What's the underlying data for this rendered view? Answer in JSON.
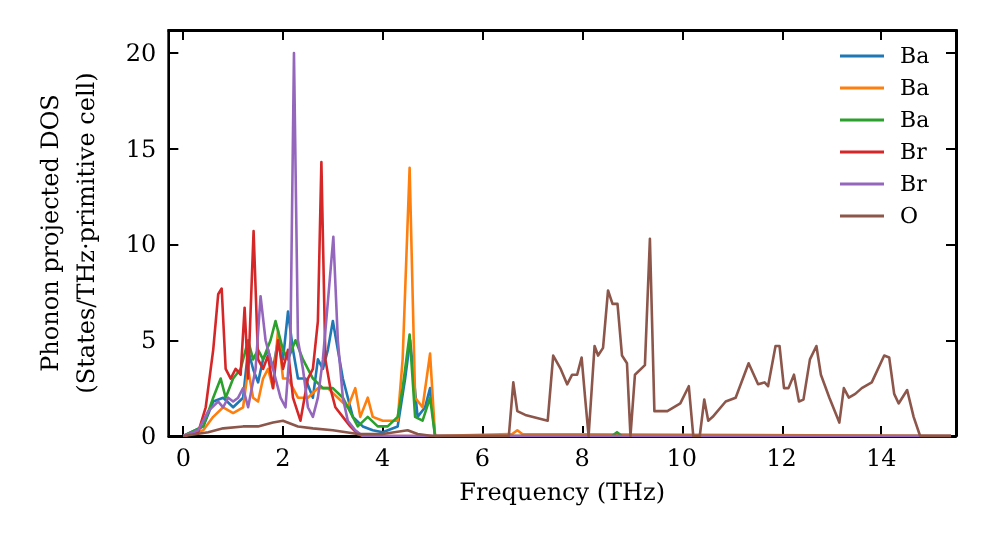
{
  "chart_data": {
    "type": "line",
    "xlabel": "Frequency (THz)",
    "ylabel": "Phonon projected DOS\n(States/THz·primitive cell)",
    "xlim": [
      -0.3,
      15.5
    ],
    "xticks": [
      0,
      2,
      4,
      6,
      8,
      10,
      12,
      14
    ],
    "ylim": [
      0,
      21.2
    ],
    "yticks": [
      0,
      5,
      10,
      15,
      20
    ],
    "grid": false,
    "legend": "top right",
    "marker": "none",
    "line_style": "solid",
    "series": [
      {
        "name": "Ba",
        "color": "#1f77b4",
        "x": [
          0,
          0.4,
          0.6,
          0.8,
          1.0,
          1.2,
          1.3,
          1.4,
          1.5,
          1.6,
          1.7,
          1.8,
          1.9,
          2.0,
          2.1,
          2.2,
          2.3,
          2.45,
          2.6,
          2.7,
          2.8,
          2.9,
          3.0,
          3.1,
          3.2,
          3.3,
          3.4,
          3.6,
          3.8,
          4.0,
          4.3,
          4.45,
          4.55,
          4.7,
          4.85,
          4.95,
          5.05
        ],
        "values": [
          0,
          0.5,
          1.8,
          2.0,
          1.5,
          2.0,
          4.5,
          3.5,
          2.8,
          4.0,
          4.5,
          3.5,
          5.0,
          4.0,
          6.5,
          4.5,
          3.0,
          3.0,
          2.0,
          4.0,
          3.5,
          4.5,
          6.0,
          4.5,
          3.0,
          2.0,
          1.0,
          0.5,
          0.3,
          0.2,
          0.5,
          3.0,
          5.0,
          1.0,
          1.5,
          2.5,
          0
        ]
      },
      {
        "name": "Ba",
        "color": "#ff7f0e",
        "x": [
          0,
          0.4,
          0.6,
          0.8,
          1.0,
          1.2,
          1.3,
          1.4,
          1.5,
          1.6,
          1.7,
          1.8,
          1.9,
          2.0,
          2.1,
          2.3,
          2.5,
          2.7,
          2.9,
          3.1,
          3.3,
          3.45,
          3.55,
          3.7,
          3.8,
          4.0,
          4.3,
          4.4,
          4.54,
          4.65,
          4.8,
          4.95,
          5.05,
          6.6,
          6.7,
          6.8,
          15.4
        ],
        "values": [
          0,
          0.3,
          1.0,
          1.5,
          1.2,
          1.5,
          3.5,
          2.0,
          1.8,
          3.0,
          3.5,
          2.5,
          5.5,
          3.0,
          3.0,
          2.0,
          2.0,
          2.5,
          2.5,
          2.0,
          1.5,
          2.5,
          1.0,
          2.0,
          1.0,
          0.8,
          0.8,
          4.0,
          14.0,
          2.0,
          1.5,
          4.3,
          0,
          0.1,
          0.3,
          0.1,
          0
        ]
      },
      {
        "name": "Ba",
        "color": "#2ca02c",
        "x": [
          0,
          0.4,
          0.6,
          0.75,
          0.85,
          1.0,
          1.15,
          1.3,
          1.4,
          1.5,
          1.6,
          1.75,
          1.85,
          2.0,
          2.1,
          2.25,
          2.4,
          2.6,
          2.8,
          3.0,
          3.2,
          3.4,
          3.5,
          3.7,
          3.9,
          4.1,
          4.3,
          4.4,
          4.54,
          4.65,
          4.8,
          4.95,
          5.05,
          8.6,
          8.7,
          8.8,
          15.4
        ],
        "values": [
          0,
          0.5,
          2.0,
          3.0,
          2.0,
          3.0,
          3.5,
          5.0,
          4.0,
          4.5,
          4.0,
          5.0,
          6.0,
          4.5,
          4.0,
          5.0,
          4.0,
          3.0,
          2.5,
          2.5,
          2.0,
          1.0,
          0.5,
          1.0,
          0.5,
          0.5,
          1.0,
          2.5,
          5.3,
          1.0,
          0.8,
          2.0,
          0,
          0,
          0.2,
          0,
          0
        ]
      },
      {
        "name": "Br",
        "color": "#d62728",
        "x": [
          0,
          0.3,
          0.45,
          0.6,
          0.7,
          0.77,
          0.85,
          0.95,
          1.05,
          1.15,
          1.23,
          1.3,
          1.41,
          1.5,
          1.6,
          1.7,
          1.8,
          1.9,
          2.0,
          2.1,
          2.2,
          2.35,
          2.5,
          2.6,
          2.7,
          2.77,
          2.85,
          2.95,
          3.05,
          3.2,
          3.35,
          3.5,
          3.6,
          15.4
        ],
        "values": [
          0,
          0.2,
          1.5,
          4.5,
          7.4,
          7.7,
          3.5,
          3.0,
          3.5,
          3.2,
          6.7,
          3.0,
          10.7,
          4.0,
          3.5,
          4.2,
          2.5,
          5.0,
          3.5,
          4.5,
          2.0,
          0.8,
          3.0,
          3.5,
          6.0,
          14.3,
          4.0,
          2.5,
          1.5,
          1.0,
          0.5,
          0.1,
          0,
          0
        ]
      },
      {
        "name": "Br",
        "color": "#9467bd",
        "x": [
          0,
          0.3,
          0.5,
          0.7,
          0.8,
          0.9,
          1.0,
          1.1,
          1.2,
          1.3,
          1.45,
          1.55,
          1.65,
          1.75,
          1.85,
          1.95,
          2.05,
          2.15,
          2.22,
          2.3,
          2.4,
          2.5,
          2.6,
          2.7,
          2.8,
          2.9,
          3.01,
          3.1,
          3.2,
          3.3,
          3.45,
          3.6,
          15.4
        ],
        "values": [
          0,
          0.3,
          1.3,
          1.8,
          1.5,
          2.0,
          1.8,
          2.0,
          2.5,
          1.5,
          3.5,
          7.3,
          5.0,
          4.0,
          3.0,
          2.0,
          1.5,
          5.0,
          20.0,
          5.0,
          3.5,
          1.5,
          1.0,
          2.0,
          4.0,
          7.0,
          10.4,
          5.0,
          2.0,
          0.8,
          0.3,
          0,
          0
        ]
      },
      {
        "name": "O",
        "color": "#8c564b",
        "x": [
          0,
          0.5,
          0.8,
          1.2,
          1.5,
          1.8,
          2.0,
          2.3,
          2.6,
          3.0,
          3.5,
          4.0,
          4.5,
          4.7,
          5.0,
          6.53,
          6.62,
          6.7,
          6.86,
          7.31,
          7.42,
          7.57,
          7.7,
          7.8,
          7.9,
          7.99,
          8.06,
          8.13,
          8.25,
          8.32,
          8.42,
          8.52,
          8.61,
          8.71,
          8.8,
          8.9,
          8.97,
          9.06,
          9.26,
          9.36,
          9.45,
          9.71,
          9.97,
          10.14,
          10.23,
          10.36,
          10.45,
          10.53,
          10.62,
          10.88,
          11.08,
          11.34,
          11.53,
          11.66,
          11.73,
          11.88,
          11.96,
          12.05,
          12.14,
          12.25,
          12.35,
          12.44,
          12.57,
          12.7,
          12.79,
          12.96,
          13.16,
          13.25,
          13.35,
          13.48,
          13.61,
          13.81,
          14.06,
          14.16,
          14.26,
          14.35,
          14.52,
          14.65,
          14.78,
          15.4
        ],
        "values": [
          0,
          0.2,
          0.4,
          0.5,
          0.5,
          0.7,
          0.8,
          0.5,
          0.4,
          0.3,
          0.1,
          0.1,
          0.3,
          0.1,
          0,
          0,
          2.8,
          1.3,
          1.1,
          0.8,
          4.2,
          3.5,
          2.7,
          3.2,
          3.2,
          4.1,
          2.0,
          0,
          4.7,
          4.2,
          4.6,
          7.6,
          6.9,
          6.9,
          4.2,
          3.8,
          0,
          3.2,
          3.7,
          10.3,
          1.3,
          1.3,
          1.7,
          2.6,
          0,
          0,
          1.9,
          0.8,
          1.0,
          1.8,
          2.0,
          3.8,
          2.7,
          2.8,
          2.6,
          4.7,
          4.7,
          2.5,
          2.5,
          3.2,
          1.8,
          1.9,
          4.0,
          4.7,
          3.2,
          2.0,
          0.7,
          2.5,
          2.0,
          2.2,
          2.5,
          2.8,
          4.2,
          4.1,
          2.2,
          1.7,
          2.4,
          1.0,
          0,
          0
        ]
      }
    ]
  }
}
